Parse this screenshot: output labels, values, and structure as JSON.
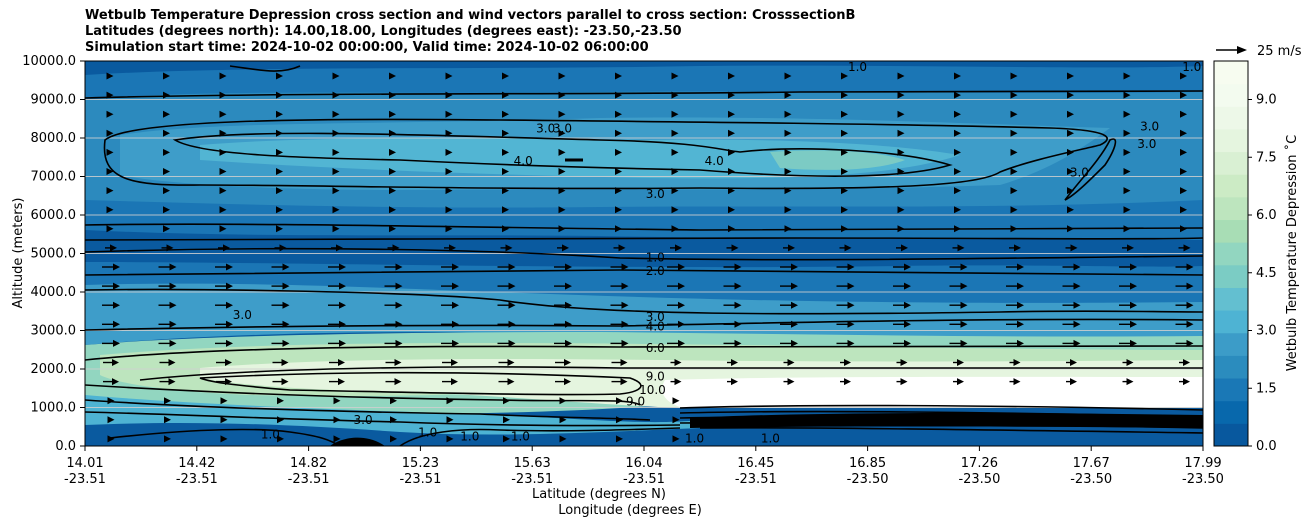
{
  "title_lines": [
    "Wetbulb Temperature Depression cross section and wind vectors parallel to cross section: CrosssectionB",
    "Latitudes (degrees north): 14.00,18.00, Longitudes (degrees east): -23.50,-23.50",
    "Simulation start time: 2024-10-02 00:00:00, Valid time: 2024-10-02 06:00:00"
  ],
  "chart_data": {
    "type": "contour",
    "ylabel": "Altitude (meters)",
    "xlabel_lat": "Latitude (degrees N)",
    "xlabel_lon": "Longitude (degrees E)",
    "ylim": [
      0,
      10000
    ],
    "y_ticks": [
      "0.0",
      "1000.0",
      "2000.0",
      "3000.0",
      "4000.0",
      "5000.0",
      "6000.0",
      "7000.0",
      "8000.0",
      "9000.0",
      "10000.0"
    ],
    "x_ticks": [
      {
        "lat": "14.01",
        "lon": "-23.51"
      },
      {
        "lat": "14.42",
        "lon": "-23.51"
      },
      {
        "lat": "14.82",
        "lon": "-23.51"
      },
      {
        "lat": "15.23",
        "lon": "-23.51"
      },
      {
        "lat": "15.63",
        "lon": "-23.51"
      },
      {
        "lat": "16.04",
        "lon": "-23.51"
      },
      {
        "lat": "16.45",
        "lon": "-23.51"
      },
      {
        "lat": "16.85",
        "lon": "-23.50"
      },
      {
        "lat": "17.26",
        "lon": "-23.50"
      },
      {
        "lat": "17.67",
        "lon": "-23.50"
      },
      {
        "lat": "17.99",
        "lon": "-23.50"
      }
    ],
    "colorbar": {
      "label": "Wetbulb Temperature Depression $^\\circ$C",
      "label_display": "Wetbulb Temperature Depression ˚C",
      "ticks": [
        "0.0",
        "1.5",
        "3.0",
        "4.5",
        "6.0",
        "7.5",
        "9.0"
      ],
      "range": [
        0,
        10
      ],
      "levels": 20,
      "colors": [
        "#08589e",
        "#0868ac",
        "#1a78b6",
        "#2b8cbe",
        "#3c9cc8",
        "#4eb3d3",
        "#63bfd0",
        "#7bccc4",
        "#92d6c0",
        "#a8ddb5",
        "#bde5be",
        "#ccebc5",
        "#d9f0d3",
        "#e5f5df",
        "#edf8e8",
        "#f3fbef",
        "#f7fcf0"
      ]
    },
    "wind_reference": "25 m/s",
    "contour_labels": [
      {
        "value": "3.0",
        "x_lat": 15.65,
        "alt": 8250
      },
      {
        "value": "3.0",
        "x_lat": 15.71,
        "alt": 8250
      },
      {
        "value": "4.0",
        "x_lat": 15.57,
        "alt": 7400
      },
      {
        "value": "4.0",
        "x_lat": 16.25,
        "alt": 7400
      },
      {
        "value": "3.0",
        "x_lat": 16.04,
        "alt": 6550
      },
      {
        "value": "3.0",
        "x_lat": 17.8,
        "alt": 8300
      },
      {
        "value": "3.0",
        "x_lat": 17.79,
        "alt": 7850
      },
      {
        "value": "3.0",
        "x_lat": 17.55,
        "alt": 7100
      },
      {
        "value": "1.0",
        "x_lat": 16.04,
        "alt": 4900
      },
      {
        "value": "2.0",
        "x_lat": 16.04,
        "alt": 4550
      },
      {
        "value": "3.0",
        "x_lat": 16.04,
        "alt": 3350
      },
      {
        "value": "4.0",
        "x_lat": 16.04,
        "alt": 3100
      },
      {
        "value": "6.0",
        "x_lat": 16.04,
        "alt": 2550
      },
      {
        "value": "9.0",
        "x_lat": 16.04,
        "alt": 1800
      },
      {
        "value": "10.0",
        "x_lat": 16.03,
        "alt": 1450
      },
      {
        "value": "9.0",
        "x_lat": 15.97,
        "alt": 1150
      },
      {
        "value": "3.0",
        "x_lat": 14.57,
        "alt": 3400
      },
      {
        "value": "3.0",
        "x_lat": 15.0,
        "alt": 680
      },
      {
        "value": "1.0",
        "x_lat": 14.67,
        "alt": 300
      },
      {
        "value": "1.0",
        "x_lat": 15.23,
        "alt": 350
      },
      {
        "value": "1.0",
        "x_lat": 15.38,
        "alt": 250
      },
      {
        "value": "1.0",
        "x_lat": 15.56,
        "alt": 250
      },
      {
        "value": "1.0",
        "x_lat": 16.18,
        "alt": 200
      },
      {
        "value": "1.0",
        "x_lat": 16.45,
        "alt": 200
      },
      {
        "value": "1.0",
        "x_lat": 16.76,
        "alt": 9850
      },
      {
        "value": "1.0",
        "x_lat": 17.95,
        "alt": 9850
      }
    ]
  }
}
